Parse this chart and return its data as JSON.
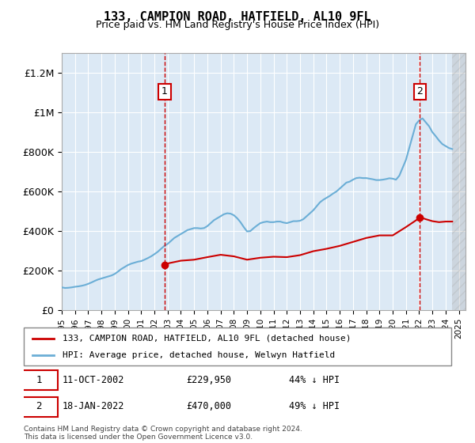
{
  "title": "133, CAMPION ROAD, HATFIELD, AL10 9FL",
  "subtitle": "Price paid vs. HM Land Registry's House Price Index (HPI)",
  "ylim": [
    0,
    1300000
  ],
  "yticks": [
    0,
    200000,
    400000,
    600000,
    800000,
    1000000,
    1200000
  ],
  "ytick_labels": [
    "£0",
    "£200K",
    "£400K",
    "£600K",
    "£800K",
    "£1M",
    "£1.2M"
  ],
  "background_color": "#dce9f5",
  "plot_bg": "#dce9f5",
  "hpi_color": "#6baed6",
  "price_color": "#cc0000",
  "marker_color": "#cc0000",
  "annotation_box_color": "#cc0000",
  "hpi_data": {
    "years": [
      1995.0,
      1995.25,
      1995.5,
      1995.75,
      1996.0,
      1996.25,
      1996.5,
      1996.75,
      1997.0,
      1997.25,
      1997.5,
      1997.75,
      1998.0,
      1998.25,
      1998.5,
      1998.75,
      1999.0,
      1999.25,
      1999.5,
      1999.75,
      2000.0,
      2000.25,
      2000.5,
      2000.75,
      2001.0,
      2001.25,
      2001.5,
      2001.75,
      2002.0,
      2002.25,
      2002.5,
      2002.75,
      2003.0,
      2003.25,
      2003.5,
      2003.75,
      2004.0,
      2004.25,
      2004.5,
      2004.75,
      2005.0,
      2005.25,
      2005.5,
      2005.75,
      2006.0,
      2006.25,
      2006.5,
      2006.75,
      2007.0,
      2007.25,
      2007.5,
      2007.75,
      2008.0,
      2008.25,
      2008.5,
      2008.75,
      2009.0,
      2009.25,
      2009.5,
      2009.75,
      2010.0,
      2010.25,
      2010.5,
      2010.75,
      2011.0,
      2011.25,
      2011.5,
      2011.75,
      2012.0,
      2012.25,
      2012.5,
      2012.75,
      2013.0,
      2013.25,
      2013.5,
      2013.75,
      2014.0,
      2014.25,
      2014.5,
      2014.75,
      2015.0,
      2015.25,
      2015.5,
      2015.75,
      2016.0,
      2016.25,
      2016.5,
      2016.75,
      2017.0,
      2017.25,
      2017.5,
      2017.75,
      2018.0,
      2018.25,
      2018.5,
      2018.75,
      2019.0,
      2019.25,
      2019.5,
      2019.75,
      2020.0,
      2020.25,
      2020.5,
      2020.75,
      2021.0,
      2021.25,
      2021.5,
      2021.75,
      2022.0,
      2022.25,
      2022.5,
      2022.75,
      2023.0,
      2023.25,
      2023.5,
      2023.75,
      2024.0,
      2024.25,
      2024.5
    ],
    "values": [
      115000,
      112000,
      113000,
      115000,
      118000,
      120000,
      123000,
      127000,
      133000,
      140000,
      148000,
      155000,
      160000,
      165000,
      170000,
      175000,
      183000,
      195000,
      208000,
      218000,
      228000,
      235000,
      240000,
      245000,
      248000,
      255000,
      263000,
      272000,
      283000,
      295000,
      310000,
      325000,
      335000,
      350000,
      365000,
      375000,
      385000,
      395000,
      405000,
      410000,
      415000,
      415000,
      413000,
      415000,
      425000,
      440000,
      455000,
      465000,
      475000,
      485000,
      490000,
      488000,
      480000,
      465000,
      445000,
      420000,
      398000,
      400000,
      415000,
      428000,
      440000,
      445000,
      448000,
      445000,
      445000,
      448000,
      448000,
      443000,
      440000,
      445000,
      450000,
      450000,
      452000,
      460000,
      475000,
      490000,
      505000,
      525000,
      545000,
      558000,
      568000,
      578000,
      590000,
      600000,
      615000,
      630000,
      645000,
      650000,
      660000,
      668000,
      670000,
      668000,
      668000,
      665000,
      662000,
      658000,
      658000,
      660000,
      663000,
      667000,
      665000,
      660000,
      680000,
      720000,
      760000,
      820000,
      880000,
      940000,
      960000,
      970000,
      950000,
      930000,
      900000,
      880000,
      858000,
      840000,
      830000,
      820000,
      815000
    ]
  },
  "price_data": {
    "dates": [
      2002.78,
      2022.05
    ],
    "values": [
      229950,
      470000
    ]
  },
  "price_line": {
    "years": [
      2002.78,
      2003.0,
      2004.0,
      2005.0,
      2006.0,
      2007.0,
      2008.0,
      2009.0,
      2010.0,
      2011.0,
      2012.0,
      2013.0,
      2014.0,
      2015.0,
      2016.0,
      2017.0,
      2018.0,
      2019.0,
      2020.0,
      2021.0,
      2022.0,
      2022.05,
      2022.5,
      2023.0,
      2023.5,
      2024.0,
      2024.5
    ],
    "values": [
      229950,
      236000,
      250000,
      255000,
      268000,
      280000,
      272000,
      255000,
      265000,
      270000,
      268000,
      278000,
      298000,
      310000,
      325000,
      345000,
      365000,
      378000,
      378000,
      420000,
      465000,
      470000,
      460000,
      450000,
      445000,
      448000,
      448000
    ]
  },
  "sale1": {
    "date": 2002.78,
    "value": 229950,
    "label": "1",
    "annotation": "11-OCT-2002    £229,950    44% ↓ HPI"
  },
  "sale2": {
    "date": 2022.05,
    "value": 470000,
    "label": "2",
    "annotation": "18-JAN-2022    £470,000    49% ↓ HPI"
  },
  "legend1": "133, CAMPION ROAD, HATFIELD, AL10 9FL (detached house)",
  "legend2": "HPI: Average price, detached house, Welwyn Hatfield",
  "footer": "Contains HM Land Registry data © Crown copyright and database right 2024.\nThis data is licensed under the Open Government Licence v3.0.",
  "xmin": 1995,
  "xmax": 2025.5,
  "grid_color": "#ffffff",
  "dashed_vline_color": "#cc0000",
  "hatch_color": "#c0c0c0"
}
